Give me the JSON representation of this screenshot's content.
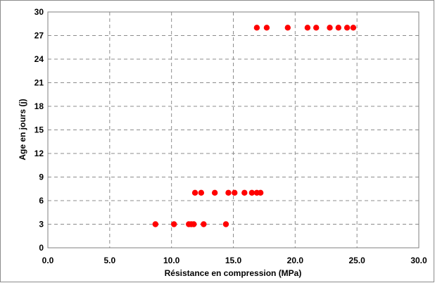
{
  "chart_data": {
    "type": "scatter",
    "title": "",
    "xlabel": "Résistance en compression (MPa)",
    "ylabel": "Age en jours (j)",
    "xlim": [
      0,
      30
    ],
    "ylim": [
      0,
      30
    ],
    "x_ticks": [
      "0.0",
      "5.0",
      "10.0",
      "15.0",
      "20.0",
      "25.0",
      "30.0"
    ],
    "y_ticks": [
      "0",
      "3",
      "6",
      "9",
      "12",
      "15",
      "18",
      "21",
      "24",
      "27",
      "30"
    ],
    "grid": true,
    "legend": "none",
    "marker_color": "#ff0000",
    "series": [
      {
        "points": [
          {
            "x": 8.7,
            "y": 3
          },
          {
            "x": 10.2,
            "y": 3
          },
          {
            "x": 11.4,
            "y": 3
          },
          {
            "x": 11.6,
            "y": 3
          },
          {
            "x": 11.8,
            "y": 3
          },
          {
            "x": 12.6,
            "y": 3
          },
          {
            "x": 14.4,
            "y": 3
          },
          {
            "x": 11.9,
            "y": 7
          },
          {
            "x": 12.4,
            "y": 7
          },
          {
            "x": 13.5,
            "y": 7
          },
          {
            "x": 14.6,
            "y": 7
          },
          {
            "x": 15.1,
            "y": 7
          },
          {
            "x": 15.9,
            "y": 7
          },
          {
            "x": 16.5,
            "y": 7
          },
          {
            "x": 16.9,
            "y": 7
          },
          {
            "x": 17.2,
            "y": 7
          },
          {
            "x": 16.9,
            "y": 28
          },
          {
            "x": 17.7,
            "y": 28
          },
          {
            "x": 19.4,
            "y": 28
          },
          {
            "x": 21.0,
            "y": 28
          },
          {
            "x": 21.7,
            "y": 28
          },
          {
            "x": 22.8,
            "y": 28
          },
          {
            "x": 23.5,
            "y": 28
          },
          {
            "x": 24.2,
            "y": 28
          },
          {
            "x": 24.7,
            "y": 28
          }
        ]
      }
    ]
  }
}
